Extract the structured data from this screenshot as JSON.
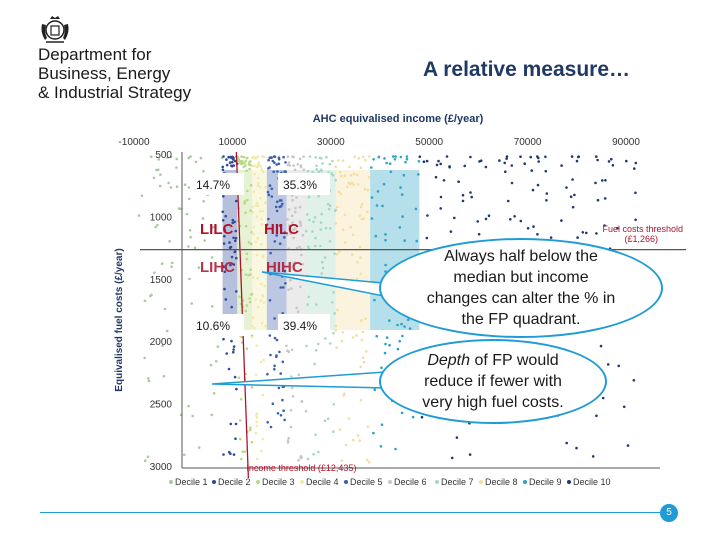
{
  "header": {
    "logo_name": "royal-coat-of-arms",
    "department_lines": [
      "Department for",
      "Business, Energy",
      "& Industrial Strategy"
    ]
  },
  "slide": {
    "title": "A relative measure…",
    "page_number": "5"
  },
  "callouts": [
    {
      "lines": [
        "Always half below the",
        "median but income",
        "changes can alter the % in",
        "the FP quadrant."
      ]
    },
    {
      "emphasis": "Depth",
      "lines": [
        " of FP would",
        "reduce if fewer with",
        "very high fuel costs."
      ]
    }
  ],
  "colors": {
    "title": "#1f3864",
    "accent": "#1f9bd7",
    "threshold_line": "#b0122b",
    "axis_line": "#555555"
  },
  "chart_data": {
    "type": "scatter",
    "title": "AHC equivalised income (£/year)",
    "xlabel": "AHC equivalised income (£/year)",
    "ylabel": "Equivalised fuel costs (£/year)",
    "x_ticks": [
      -10000,
      10000,
      30000,
      50000,
      70000,
      90000
    ],
    "y_ticks": [
      500,
      1000,
      1500,
      2000,
      2500,
      3000
    ],
    "xlim": [
      -10000,
      90000
    ],
    "ylim": [
      500,
      3000
    ],
    "y_inverted": true,
    "deciles": [
      {
        "name": "Decile 1",
        "color": "#a8c9a0",
        "x_range": [
          -9000,
          8000
        ]
      },
      {
        "name": "Decile 2",
        "color": "#2e4b9a",
        "x_range": [
          8000,
          11000
        ]
      },
      {
        "name": "Decile 3",
        "color": "#b9d985",
        "x_range": [
          11000,
          14000
        ]
      },
      {
        "name": "Decile 4",
        "color": "#f1e9a6",
        "x_range": [
          14000,
          17000
        ]
      },
      {
        "name": "Decile 5",
        "color": "#3b5fae",
        "x_range": [
          17000,
          21000
        ]
      },
      {
        "name": "Decile 6",
        "color": "#c6c6c6",
        "x_range": [
          21000,
          25000
        ]
      },
      {
        "name": "Decile 7",
        "color": "#a5d8c4",
        "x_range": [
          25000,
          31000
        ]
      },
      {
        "name": "Decile 8",
        "color": "#f3dda0",
        "x_range": [
          31000,
          38000
        ]
      },
      {
        "name": "Decile 9",
        "color": "#2ba3c2",
        "x_range": [
          38000,
          48000
        ]
      },
      {
        "name": "Decile 10",
        "color": "#1f3a6e",
        "x_range": [
          48000,
          92000
        ]
      }
    ],
    "thresholds": {
      "income_label": "Income threshold (£12,435)",
      "income_value": 12435,
      "fuel_label_lines": [
        "Fuel costs threshold",
        "(£1,266)"
      ],
      "fuel_value": 1266
    },
    "quadrants": [
      {
        "label": "LILC",
        "percent": "14.7%"
      },
      {
        "label": "HILC",
        "percent": "35.3%"
      },
      {
        "label": "LIHC",
        "percent": "10.6%"
      },
      {
        "label": "HIHC",
        "percent": "39.4%"
      }
    ]
  }
}
